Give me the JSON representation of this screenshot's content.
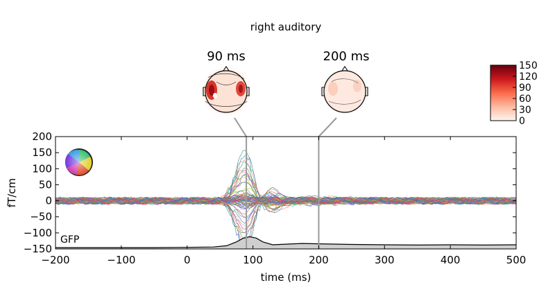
{
  "chart_data": {
    "type": "line",
    "title": "right auditory",
    "xlabel": "time (ms)",
    "ylabel": "fT/cm",
    "xlim": [
      -200,
      500
    ],
    "ylim": [
      -150,
      200
    ],
    "xticks": [
      -200,
      -100,
      0,
      100,
      200,
      300,
      400,
      500
    ],
    "xtick_labels": [
      "−200",
      "−100",
      "0",
      "100",
      "200",
      "300",
      "400",
      "500"
    ],
    "yticks": [
      -150,
      -100,
      -50,
      0,
      50,
      100,
      150,
      200
    ],
    "ytick_labels": [
      "−150",
      "−100",
      "−50",
      "0",
      "50",
      "100",
      "150",
      "200"
    ],
    "grid": false,
    "gfp_label": "GFP",
    "gfp": {
      "x": [
        -200,
        -150,
        -100,
        -50,
        0,
        40,
        60,
        75,
        85,
        95,
        105,
        115,
        130,
        150,
        175,
        200,
        250,
        300,
        350,
        400,
        450,
        500
      ],
      "y": [
        -146,
        -146,
        -146,
        -146,
        -145,
        -144,
        -140,
        -128,
        -117,
        -112,
        -116,
        -128,
        -137,
        -135,
        -133,
        -134,
        -136,
        -137,
        -138,
        -137,
        -138,
        -137
      ]
    },
    "series_count": 204,
    "channel_traces": [
      {
        "amplitude": 155,
        "color": "#1a8c7a"
      },
      {
        "amplitude": 145,
        "color": "#2e6e9e"
      },
      {
        "amplitude": 135,
        "color": "#ff7f50"
      },
      {
        "amplitude": 125,
        "color": "#20a080"
      },
      {
        "amplitude": 110,
        "color": "#3fa060"
      },
      {
        "amplitude": 100,
        "color": "#d44a8a"
      },
      {
        "amplitude": 95,
        "color": "#ff8a5a"
      },
      {
        "amplitude": 85,
        "color": "#7a44c8"
      },
      {
        "amplitude": 80,
        "color": "#1a9070"
      },
      {
        "amplitude": 70,
        "color": "#ffb020"
      },
      {
        "amplitude": 60,
        "color": "#c848c8"
      },
      {
        "amplitude": 55,
        "color": "#30b040"
      },
      {
        "amplitude": -150,
        "color": "#1a8c7a"
      },
      {
        "amplitude": -140,
        "color": "#4a58c8"
      },
      {
        "amplitude": -130,
        "color": "#ff6a3a"
      },
      {
        "amplitude": -120,
        "color": "#2aa0a0"
      },
      {
        "amplitude": -105,
        "color": "#e05070"
      },
      {
        "amplitude": -95,
        "color": "#6a8a30"
      },
      {
        "amplitude": -85,
        "color": "#9a40c0"
      },
      {
        "amplitude": -75,
        "color": "#ff9040"
      },
      {
        "amplitude": -65,
        "color": "#3070c0"
      },
      {
        "amplitude": -55,
        "color": "#20a060"
      },
      {
        "amplitude": 45,
        "color": "#e0c020"
      },
      {
        "amplitude": -45,
        "color": "#b050d0"
      },
      {
        "amplitude": 35,
        "color": "#50c050"
      },
      {
        "amplitude": -35,
        "color": "#d06030"
      },
      {
        "amplitude": 25,
        "color": "#4080d0"
      },
      {
        "amplitude": -25,
        "color": "#c04080"
      },
      {
        "amplitude": 18,
        "color": "#80a030"
      },
      {
        "amplitude": -18,
        "color": "#6050c0"
      },
      {
        "amplitude": 12,
        "color": "#30a0b0"
      },
      {
        "amplitude": -12,
        "color": "#e08030"
      }
    ],
    "topomaps": [
      {
        "time": 90,
        "label": "90 ms"
      },
      {
        "time": 200,
        "label": "200 ms"
      }
    ],
    "colorbar": {
      "min": 0,
      "max": 150,
      "ticks": [
        0,
        30,
        60,
        90,
        120,
        150
      ],
      "colormap": "Reds"
    }
  }
}
